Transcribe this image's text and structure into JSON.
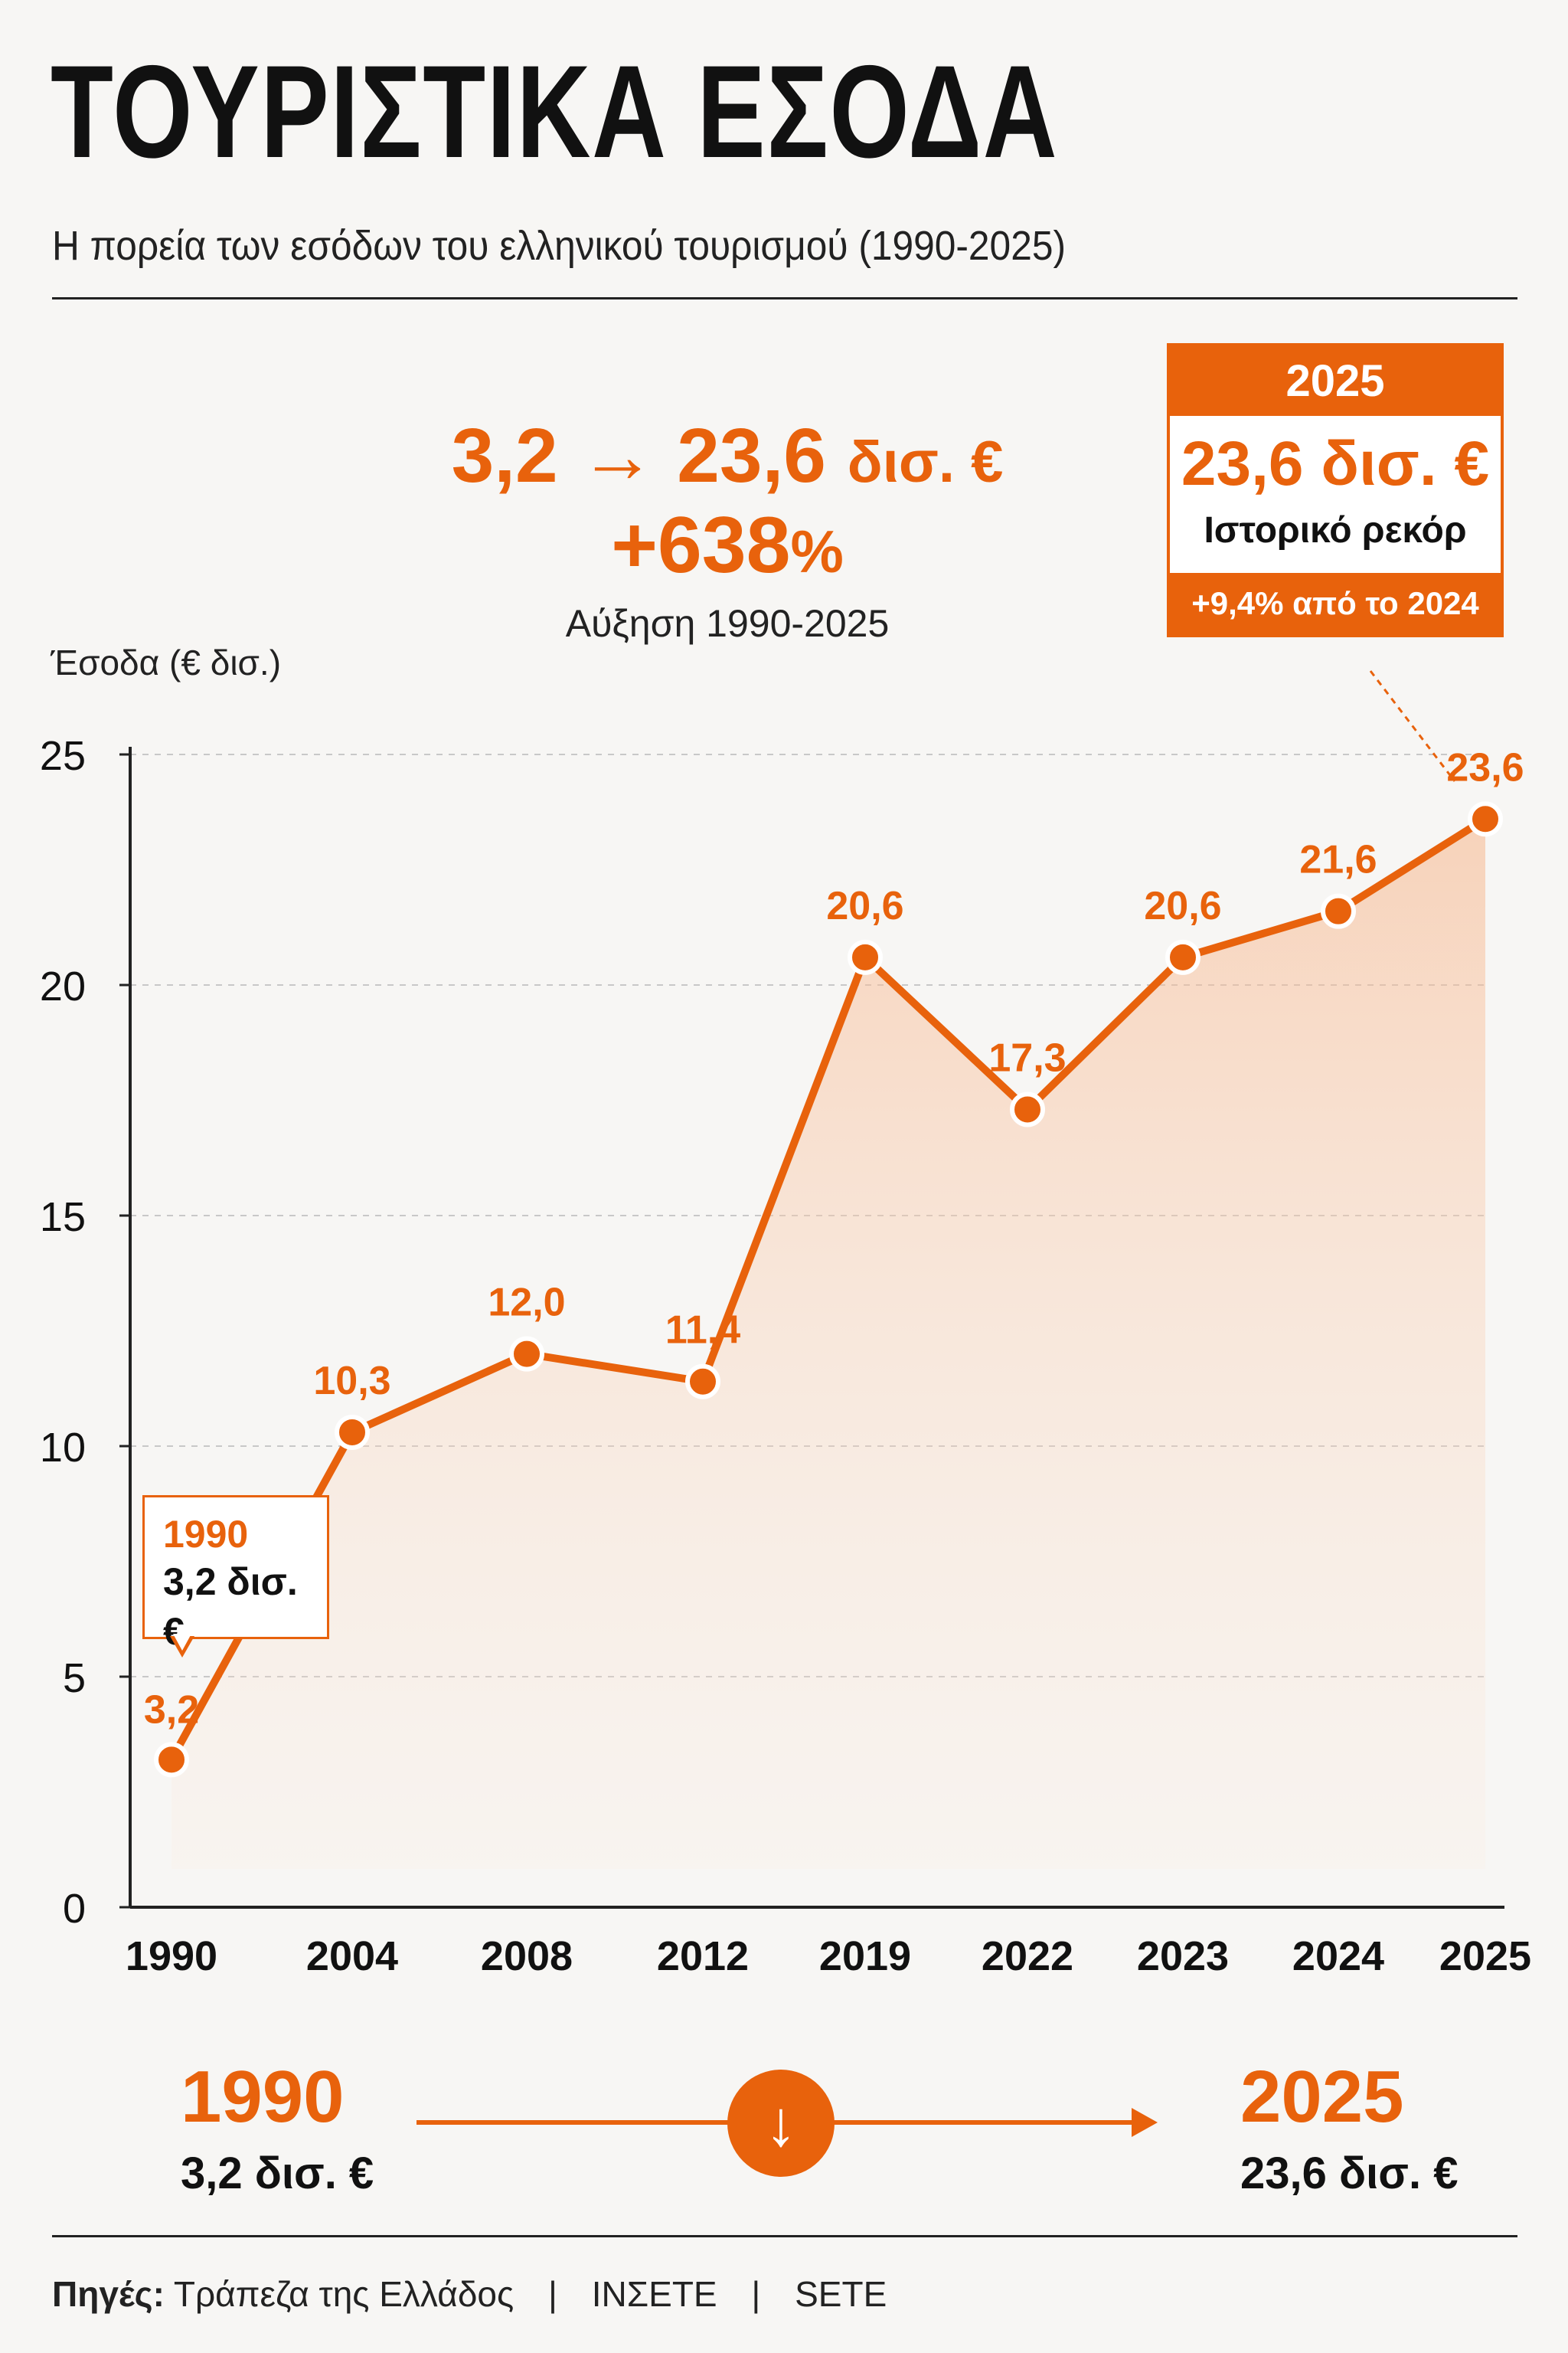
{
  "title": "ΤΟΥΡΙΣΤΙΚΑ ΕΣΟΔΑ",
  "subtitle": "Η πορεία των εσόδων του ελληνικού τουρισμού (1990-2025)",
  "headline": {
    "from": "3,2",
    "arrow": "→",
    "to": "23,6",
    "unit": "δισ. €",
    "pct": "+638",
    "pct_sign": "%",
    "label": "Αύξηση 1990-2025"
  },
  "badge": {
    "year": "2025",
    "value": "23,6 δισ. €",
    "note": "Ιστορικό ρεκόρ",
    "delta": "+9,4% από το 2024"
  },
  "callout": {
    "year": "1990",
    "value": "3,2 δισ. €"
  },
  "bottom": {
    "left_year": "1990",
    "left_value": "3,2 δισ. €",
    "right_year": "2025",
    "right_value": "23,6 δισ. €",
    "icon": "arrow-down-circle-icon",
    "icon_glyph": "↓"
  },
  "sources": {
    "label": "Πηγές:",
    "items": [
      "Τράπεζα της Ελλάδος",
      "ΙΝΣΕΤΕ",
      "SETE"
    ],
    "separator": "|"
  },
  "colors": {
    "accent": "#e8620c",
    "text": "#111111",
    "background": "#f7f6f4",
    "grid": "#c8c8c8"
  },
  "chart_data": {
    "type": "area",
    "title": "",
    "xlabel": "",
    "ylabel": "Έσοδα (€ δισ.)",
    "categories": [
      "1990",
      "2004",
      "2008",
      "2012",
      "2019",
      "2022",
      "2023",
      "2024",
      "2025"
    ],
    "series": [
      {
        "values": [
          3.2,
          10.3,
          12.0,
          11.4,
          20.6,
          17.3,
          20.6,
          21.6,
          23.6
        ],
        "labels": [
          "3,2",
          "10,3",
          "12,0",
          "11,4",
          "20,6",
          "17,3",
          "20,6",
          "21,6",
          "23,6"
        ]
      }
    ],
    "ylim": [
      0,
      25
    ],
    "yticks": [
      0,
      5,
      10,
      15,
      20,
      25
    ],
    "grid": "horizontal-dashed",
    "legend": "none"
  }
}
